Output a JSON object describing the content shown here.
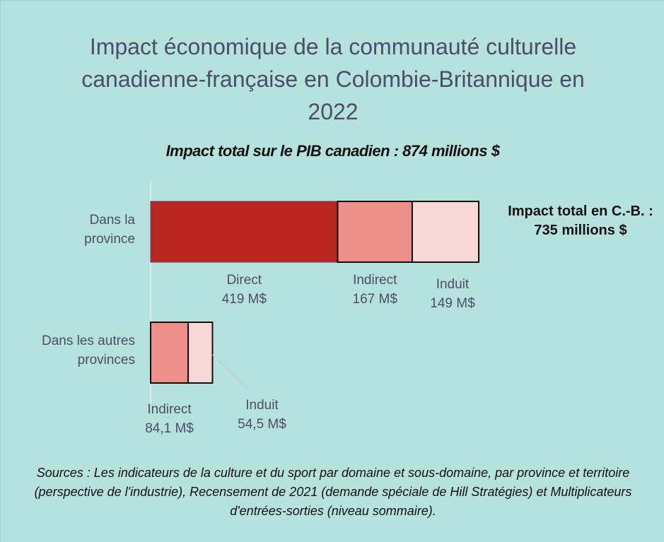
{
  "chart_data": {
    "type": "stacked-barh",
    "title": "Impact économique de la communauté culturelle canadienne-française en Colombie-Britannique en 2022",
    "subtitle": "Impact total sur le PIB canadien : 874 millions $",
    "annotation": "Impact total en C.-B. : 735 millions $",
    "sources": "Sources : Les indicateurs de la culture et du sport par domaine et sous-domaine, par province et territoire (perspective de l'industrie), Recensement de 2021 (demande spéciale de Hill Stratégies) et Multiplicateurs d'entrées-sorties (niveau sommaire).",
    "categories": [
      "Dans la province",
      "Dans les autres provinces"
    ],
    "series": [
      {
        "name": "Direct",
        "color": "#b8241e",
        "values": [
          419,
          null
        ],
        "value_labels": [
          "419 M$",
          null
        ]
      },
      {
        "name": "Indirect",
        "color": "#ec8f88",
        "values": [
          167,
          84.1
        ],
        "value_labels": [
          "167 M$",
          "84,1 M$"
        ]
      },
      {
        "name": "Induit",
        "color": "#f8d8d6",
        "values": [
          149,
          54.5
        ],
        "value_labels": [
          "149 M$",
          "54,5 M$"
        ]
      }
    ]
  }
}
